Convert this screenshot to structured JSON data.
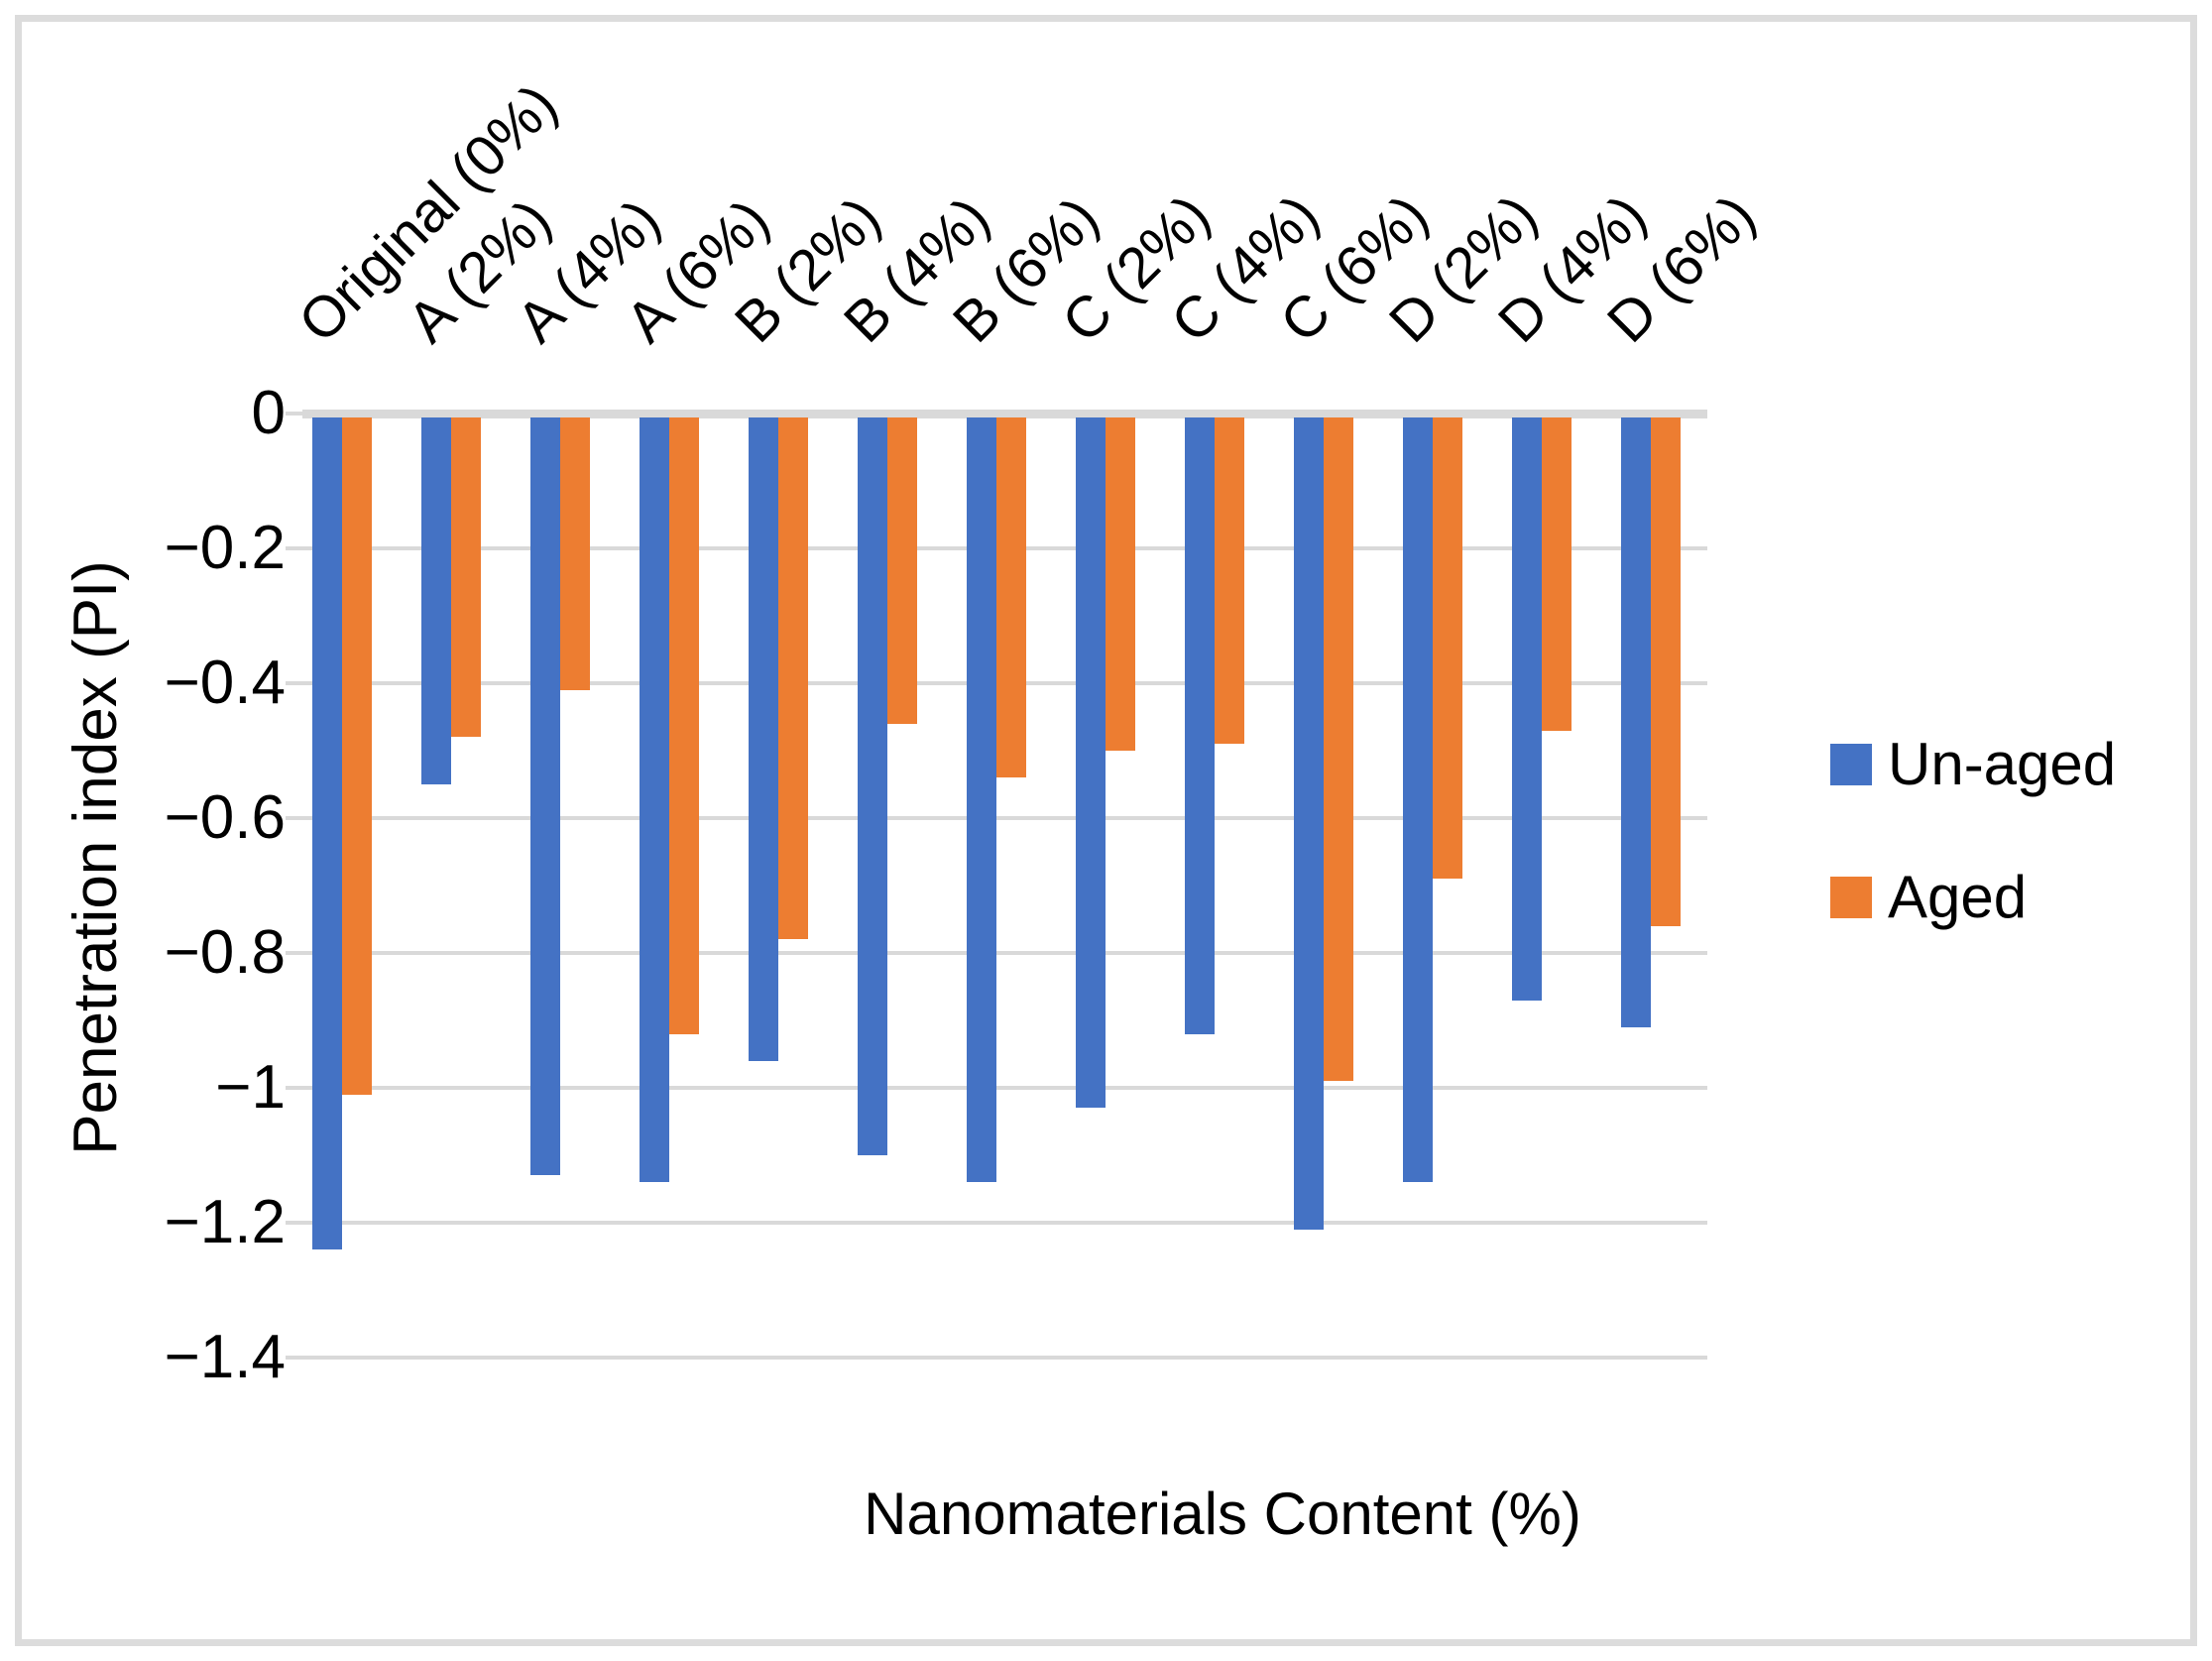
{
  "frame": {
    "border_color": "#DCDCDC"
  },
  "chart_data": {
    "type": "bar",
    "orientation": "vertical",
    "title": "",
    "xlabel": "Nanomaterials Content (%)",
    "ylabel": "Penetration index (PI)",
    "categories": [
      "Original (0%)",
      "A (2%)",
      "A (4%)",
      "A (6%)",
      "B (2%)",
      "B (4%)",
      "B (6%)",
      "C (2%)",
      "C (4%)",
      "C (6%)",
      "D (2%)",
      "D (4%)",
      "D (6%)"
    ],
    "series": [
      {
        "name": "Un-aged",
        "color": "#4472C4",
        "values": [
          -1.24,
          -0.55,
          -1.13,
          -1.14,
          -0.96,
          -1.1,
          -1.14,
          -1.03,
          -0.92,
          -1.21,
          -1.14,
          -0.87,
          -0.91
        ]
      },
      {
        "name": "Aged",
        "color": "#ED7D31",
        "values": [
          -1.01,
          -0.48,
          -0.41,
          -0.92,
          -0.78,
          -0.46,
          -0.54,
          -0.5,
          -0.49,
          -0.99,
          -0.69,
          -0.47,
          -0.76
        ]
      }
    ],
    "y_axis": {
      "min": -1.4,
      "max": 0,
      "ticks": [
        0,
        -0.2,
        -0.4,
        -0.6,
        -0.8,
        -1,
        -1.2,
        -1.4
      ],
      "tick_labels": [
        "0",
        "−0.2",
        "−0.4",
        "−0.6",
        "−0.8",
        "−1",
        "−1.2",
        "−1.4"
      ],
      "gridlines": true,
      "gridline_color": "#D9D9D9"
    },
    "legend": {
      "position": "right",
      "entries": [
        "Un-aged",
        "Aged"
      ]
    }
  }
}
